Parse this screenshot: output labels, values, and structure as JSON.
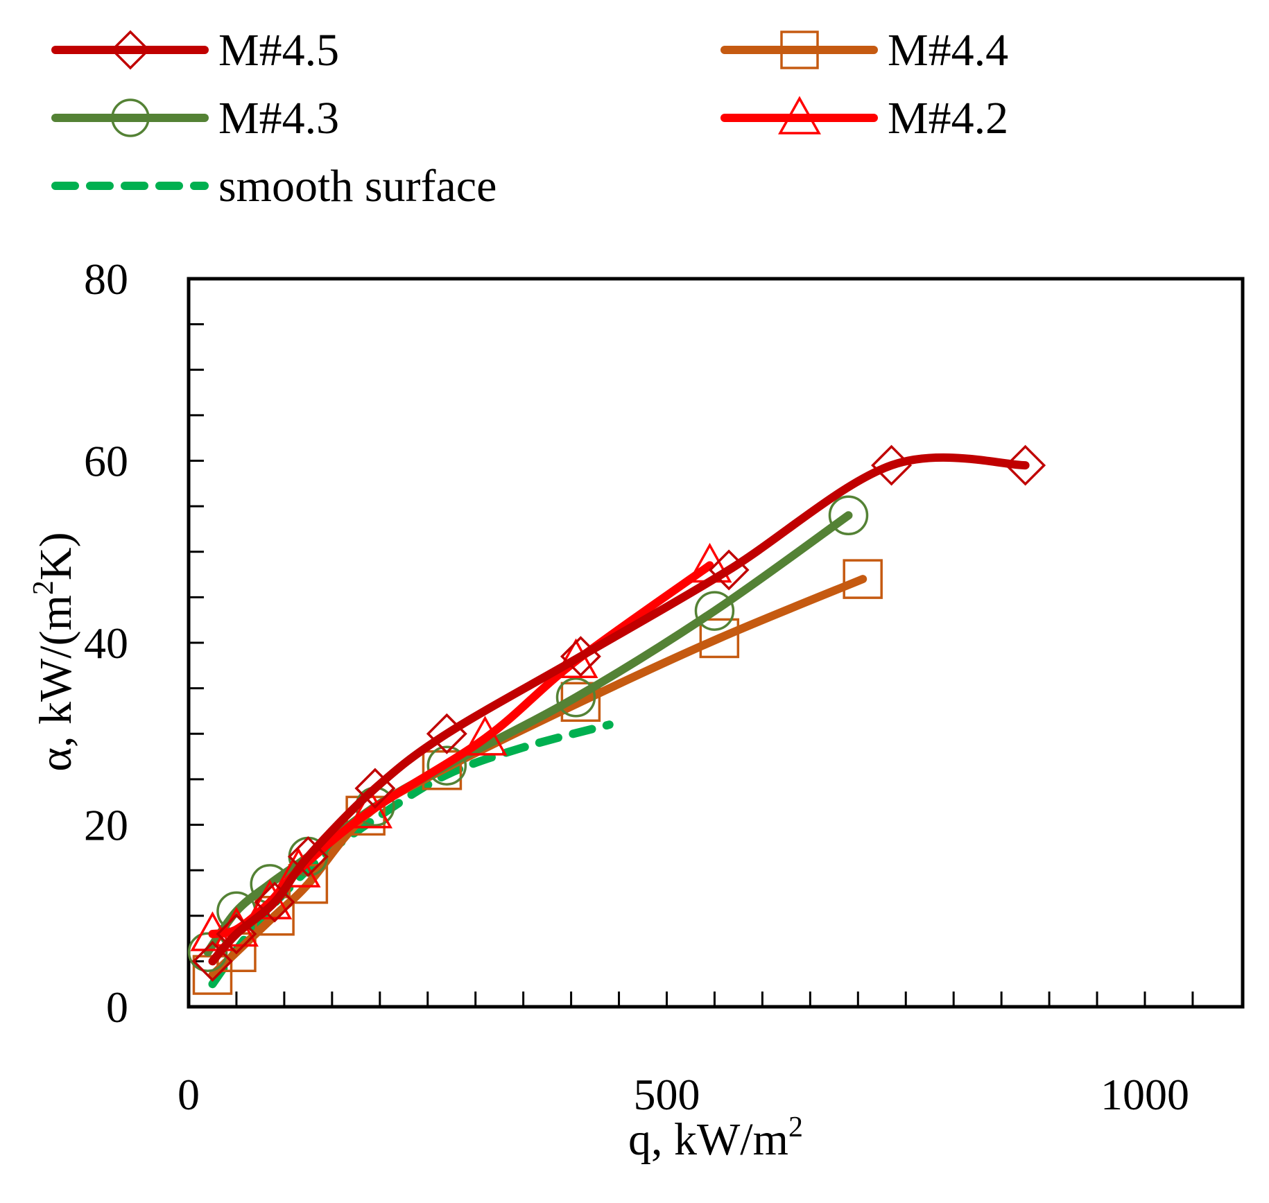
{
  "chart_data": {
    "type": "line",
    "title": "",
    "xlabel": "q, kW/m",
    "xlabel_sup": "2",
    "ylabel_pre": "α, kW/(m",
    "ylabel_sup": "2",
    "ylabel_post": "K)",
    "xlim": [
      0,
      1100
    ],
    "ylim": [
      0,
      80
    ],
    "xticks": [
      0,
      500,
      1000
    ],
    "xtick_labels": [
      "0",
      "500",
      "1000"
    ],
    "yticks": [
      0,
      20,
      40,
      60,
      80
    ],
    "ytick_labels": [
      "0",
      "20",
      "40",
      "60",
      "80"
    ],
    "x_minor_step": 50,
    "y_minor_step": 5,
    "grid": false,
    "legend_position": "top, above plot, two columns",
    "series": [
      {
        "name": "M#4.5",
        "color": "#c00000",
        "marker": "diamond",
        "dash": false,
        "x": [
          25,
          50,
          90,
          125,
          195,
          270,
          410,
          565,
          735,
          875
        ],
        "y": [
          5,
          8,
          11.5,
          16.5,
          24,
          30,
          38.5,
          48,
          59.5,
          59.5
        ]
      },
      {
        "name": "M#4.4",
        "color": "#c55a11",
        "marker": "square",
        "dash": false,
        "x": [
          25,
          50,
          90,
          125,
          185,
          265,
          410,
          555,
          705
        ],
        "y": [
          3.5,
          6,
          10,
          13.5,
          21,
          26,
          33.5,
          40.5,
          47
        ]
      },
      {
        "name": "M#4.3",
        "color": "#548235",
        "marker": "circle",
        "dash": false,
        "x": [
          20,
          50,
          85,
          125,
          195,
          270,
          405,
          550,
          690
        ],
        "y": [
          6,
          10.5,
          13.5,
          16.5,
          22,
          26.5,
          34,
          43.5,
          54
        ]
      },
      {
        "name": "M#4.2",
        "color": "#ff0000",
        "marker": "triangle",
        "dash": false,
        "x": [
          25,
          50,
          85,
          115,
          190,
          310,
          405,
          545
        ],
        "y": [
          8,
          8.5,
          11.5,
          15,
          21.5,
          29.5,
          38,
          48.5
        ]
      },
      {
        "name": "smooth surface",
        "color": "#00b050",
        "marker": "none",
        "dash": true,
        "x": [
          25,
          45,
          70,
          100,
          140,
          200,
          270,
          350,
          440
        ],
        "y": [
          2.5,
          5.5,
          9,
          12.5,
          16.5,
          21,
          25.5,
          28.5,
          31
        ]
      }
    ]
  }
}
